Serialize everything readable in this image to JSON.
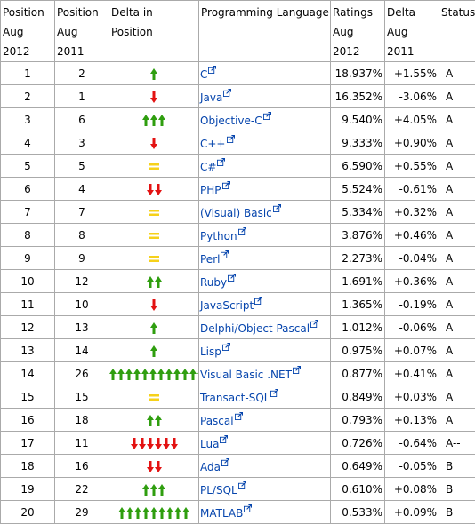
{
  "colors": {
    "up": "#2f9e0f",
    "down": "#e31212",
    "same": "#f6d11a",
    "link": "#0645ad",
    "border": "#aaaaaa"
  },
  "headers": {
    "pos2012": [
      "Position",
      "Aug 2012"
    ],
    "pos2011": [
      "Position",
      "Aug 2011"
    ],
    "delta_pos": "Delta in Position",
    "language": "Programming Language",
    "ratings": [
      "Ratings",
      "Aug 2012"
    ],
    "delta": [
      "Delta",
      "Aug 2011"
    ],
    "status": "Status"
  },
  "rows": [
    {
      "pos": "1",
      "prev": "2",
      "dir": "up",
      "count": 1,
      "lang": "C",
      "rating": "18.937%",
      "delta": "+1.55%",
      "status": "A"
    },
    {
      "pos": "2",
      "prev": "1",
      "dir": "down",
      "count": 1,
      "lang": "Java",
      "rating": "16.352%",
      "delta": "-3.06%",
      "status": "A"
    },
    {
      "pos": "3",
      "prev": "6",
      "dir": "up",
      "count": 3,
      "lang": "Objective-C",
      "rating": "9.540%",
      "delta": "+4.05%",
      "status": "A"
    },
    {
      "pos": "4",
      "prev": "3",
      "dir": "down",
      "count": 1,
      "lang": "C++",
      "rating": "9.333%",
      "delta": "+0.90%",
      "status": "A"
    },
    {
      "pos": "5",
      "prev": "5",
      "dir": "same",
      "count": 1,
      "lang": "C#",
      "rating": "6.590%",
      "delta": "+0.55%",
      "status": "A"
    },
    {
      "pos": "6",
      "prev": "4",
      "dir": "down",
      "count": 2,
      "lang": "PHP",
      "rating": "5.524%",
      "delta": "-0.61%",
      "status": "A"
    },
    {
      "pos": "7",
      "prev": "7",
      "dir": "same",
      "count": 1,
      "lang": "(Visual) Basic",
      "rating": "5.334%",
      "delta": "+0.32%",
      "status": "A"
    },
    {
      "pos": "8",
      "prev": "8",
      "dir": "same",
      "count": 1,
      "lang": "Python",
      "rating": "3.876%",
      "delta": "+0.46%",
      "status": "A"
    },
    {
      "pos": "9",
      "prev": "9",
      "dir": "same",
      "count": 1,
      "lang": "Perl",
      "rating": "2.273%",
      "delta": "-0.04%",
      "status": "A"
    },
    {
      "pos": "10",
      "prev": "12",
      "dir": "up",
      "count": 2,
      "lang": "Ruby",
      "rating": "1.691%",
      "delta": "+0.36%",
      "status": "A"
    },
    {
      "pos": "11",
      "prev": "10",
      "dir": "down",
      "count": 1,
      "lang": "JavaScript",
      "rating": "1.365%",
      "delta": "-0.19%",
      "status": "A"
    },
    {
      "pos": "12",
      "prev": "13",
      "dir": "up",
      "count": 1,
      "lang": "Delphi/Object Pascal",
      "rating": "1.012%",
      "delta": "-0.06%",
      "status": "A"
    },
    {
      "pos": "13",
      "prev": "14",
      "dir": "up",
      "count": 1,
      "lang": "Lisp",
      "rating": "0.975%",
      "delta": "+0.07%",
      "status": "A"
    },
    {
      "pos": "14",
      "prev": "26",
      "dir": "up",
      "count": 12,
      "lang": "Visual Basic .NET",
      "rating": "0.877%",
      "delta": "+0.41%",
      "status": "A"
    },
    {
      "pos": "15",
      "prev": "15",
      "dir": "same",
      "count": 1,
      "lang": "Transact-SQL",
      "rating": "0.849%",
      "delta": "+0.03%",
      "status": "A"
    },
    {
      "pos": "16",
      "prev": "18",
      "dir": "up",
      "count": 2,
      "lang": "Pascal",
      "rating": "0.793%",
      "delta": "+0.13%",
      "status": "A"
    },
    {
      "pos": "17",
      "prev": "11",
      "dir": "down",
      "count": 6,
      "lang": "Lua",
      "rating": "0.726%",
      "delta": "-0.64%",
      "status": "A--"
    },
    {
      "pos": "18",
      "prev": "16",
      "dir": "down",
      "count": 2,
      "lang": "Ada",
      "rating": "0.649%",
      "delta": "-0.05%",
      "status": "B"
    },
    {
      "pos": "19",
      "prev": "22",
      "dir": "up",
      "count": 3,
      "lang": "PL/SQL",
      "rating": "0.610%",
      "delta": "+0.08%",
      "status": "B"
    },
    {
      "pos": "20",
      "prev": "29",
      "dir": "up",
      "count": 9,
      "lang": "MATLAB",
      "rating": "0.533%",
      "delta": "+0.09%",
      "status": "B"
    }
  ]
}
